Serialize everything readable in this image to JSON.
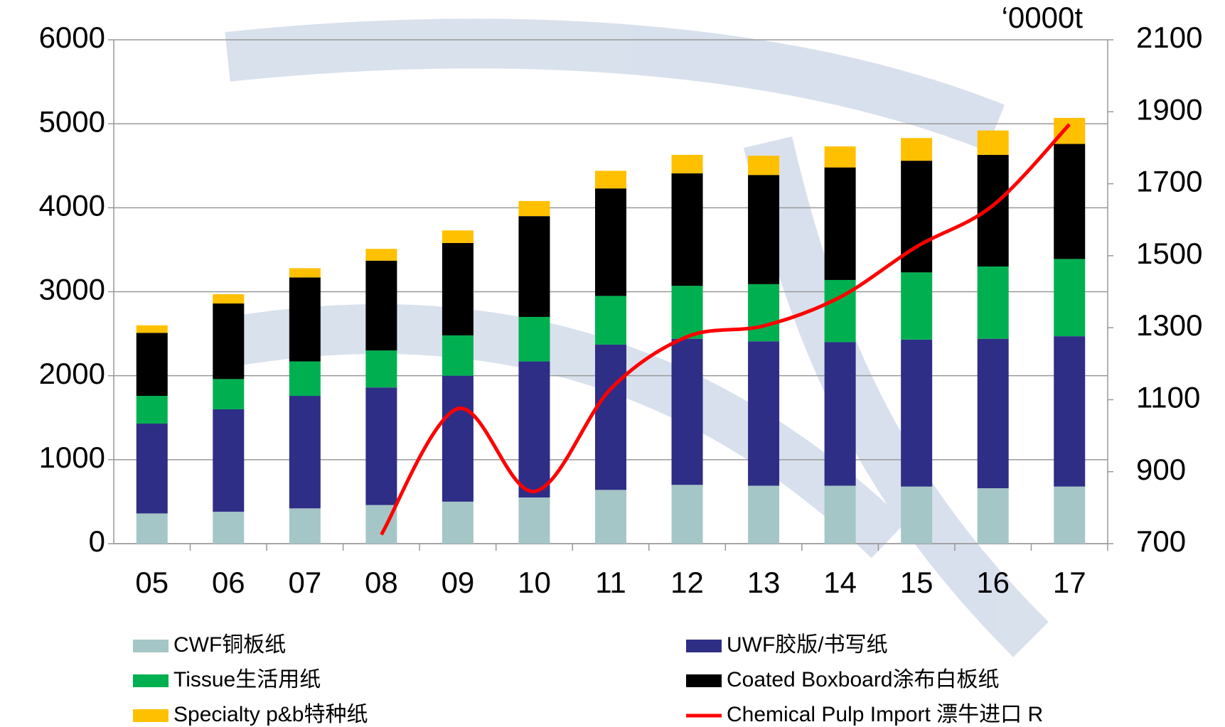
{
  "chart_data": {
    "type": "bar",
    "stacked": true,
    "unit": "‘0000t",
    "categories": [
      "05",
      "06",
      "07",
      "08",
      "09",
      "10",
      "11",
      "12",
      "13",
      "14",
      "15",
      "16",
      "17"
    ],
    "series": [
      {
        "name": "CWF铜板纸",
        "color": "#a5c6c6",
        "values": [
          360,
          380,
          420,
          460,
          500,
          550,
          640,
          700,
          690,
          690,
          680,
          660,
          680
        ]
      },
      {
        "name": "UWF胶版/书写纸",
        "color": "#2e2e87",
        "values": [
          1070,
          1220,
          1340,
          1400,
          1500,
          1620,
          1730,
          1740,
          1720,
          1710,
          1750,
          1780,
          1790
        ]
      },
      {
        "name": "Tissue生活用纸",
        "color": "#00b050",
        "values": [
          330,
          360,
          410,
          440,
          480,
          530,
          580,
          630,
          680,
          740,
          800,
          860,
          920
        ]
      },
      {
        "name": "Coated Boxboard涂布白板纸",
        "color": "#000000",
        "values": [
          750,
          900,
          1000,
          1070,
          1100,
          1200,
          1280,
          1340,
          1300,
          1340,
          1330,
          1330,
          1370
        ]
      },
      {
        "name": "Specialty p&b特种纸",
        "color": "#ffc000",
        "values": [
          90,
          110,
          110,
          140,
          150,
          180,
          210,
          220,
          230,
          250,
          270,
          290,
          310
        ]
      },
      {
        "name": "Chemical Pulp Import 漂牛进口 R",
        "color": "#ff0000",
        "type": "line",
        "axis": "y2",
        "values": [
          null,
          null,
          null,
          725,
          1075,
          845,
          1130,
          1275,
          1305,
          1385,
          1525,
          1640,
          1865
        ]
      }
    ],
    "ylim": [
      0,
      6000
    ],
    "yticks": [
      0,
      1000,
      2000,
      3000,
      4000,
      5000,
      6000
    ],
    "y2lim": [
      700,
      2100
    ],
    "y2ticks": [
      700,
      900,
      1100,
      1300,
      1500,
      1700,
      1900,
      2100
    ],
    "grid": true,
    "legend": "bottom"
  }
}
